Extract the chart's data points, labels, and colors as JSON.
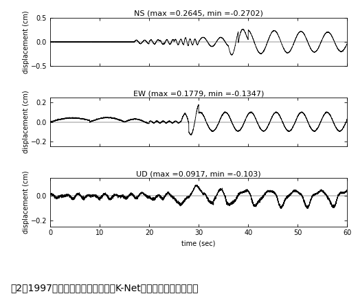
{
  "title_NS": "NS (max =0.2645, min =-0.2702)",
  "title_EW": "EW (max =0.1779, min =-0.1347)",
  "title_UD": "UD (max =0.0917, min =-0.103)",
  "xlabel": "time (sec)",
  "ylabel": "displacement (cm)",
  "xlim": [
    0,
    60
  ],
  "ylim_NS": [
    -0.5,
    0.5
  ],
  "ylim_EW": [
    -0.25,
    0.25
  ],
  "ylim_UD": [
    -0.25,
    0.15
  ],
  "xticks": [
    0,
    10,
    20,
    30,
    40,
    50,
    60
  ],
  "yticks_NS": [
    -0.5,
    0,
    0.5
  ],
  "yticks_EW": [
    -0.2,
    0,
    0.2
  ],
  "yticks_UD": [
    -0.2,
    0
  ],
  "caption": "図2：1997年伊豆半島東方沖地震のK-Net新宿における変位波形",
  "line_color": "#000000",
  "bg_color": "#ffffff",
  "title_fontsize": 8,
  "label_fontsize": 7,
  "tick_fontsize": 7,
  "caption_fontsize": 10
}
